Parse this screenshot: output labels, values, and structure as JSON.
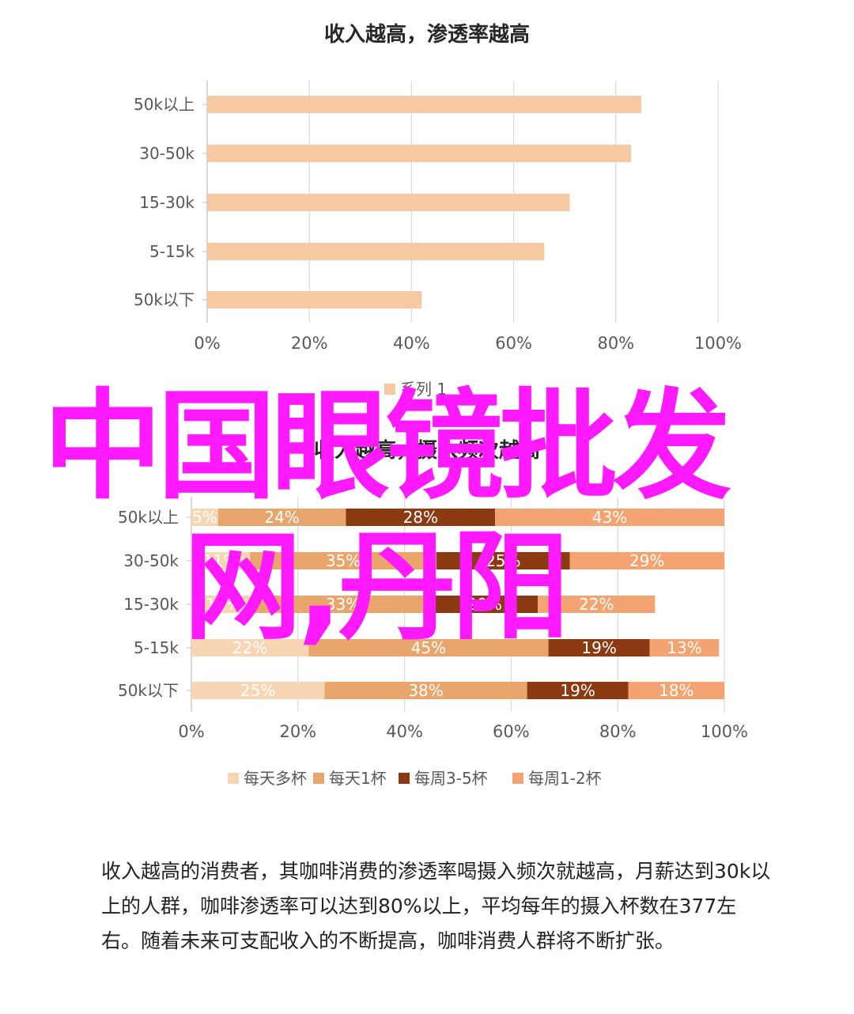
{
  "colors": {
    "single_bar": "#f6c9a3",
    "grid": "#d9d9d9",
    "axis": "#bfbfbf",
    "text": "#595959",
    "watermark": "#ff19ff"
  },
  "watermark": {
    "line1": "中国眼镜批发",
    "line2": "网,丹阳"
  },
  "chart_data": [
    {
      "type": "bar",
      "orientation": "horizontal",
      "title": "收入越高，渗透率越高",
      "categories": [
        "50k以上",
        "30-50k",
        "15-30k",
        "5-15k",
        "50k以下"
      ],
      "series": [
        {
          "name": "系列 1",
          "values": [
            85,
            83,
            71,
            66,
            42
          ]
        }
      ],
      "xlim": [
        0,
        100
      ],
      "x_ticks": [
        "0%",
        "20%",
        "40%",
        "60%",
        "80%",
        "100%"
      ],
      "grid": true,
      "legend": "bottom"
    },
    {
      "type": "bar",
      "orientation": "horizontal",
      "stacked": true,
      "title": "收入越高，摄入频次越高",
      "categories": [
        "50k以上",
        "30-50k",
        "15-30k",
        "5-15k",
        "50k以下"
      ],
      "series": [
        {
          "name": "每天多杯",
          "color": "#f8d6b4",
          "values": [
            5,
            11,
            12,
            22,
            25
          ]
        },
        {
          "name": "每天1杯",
          "color": "#e8a56c",
          "values": [
            24,
            35,
            33,
            45,
            38
          ]
        },
        {
          "name": "每周3-5杯",
          "color": "#8b3a12",
          "values": [
            28,
            25,
            20,
            19,
            19
          ]
        },
        {
          "name": "每周1-2杯",
          "color": "#f3a470",
          "values": [
            43,
            29,
            22,
            13,
            18
          ]
        }
      ],
      "xlim": [
        0,
        100
      ],
      "x_ticks": [
        "0%",
        "20%",
        "40%",
        "60%",
        "80%",
        "100%"
      ],
      "grid": true,
      "legend": "bottom"
    }
  ],
  "caption": "收入越高的消费者，其咖啡消费的渗透率喝摄入频次就越高，月薪达到30k以上的人群，咖啡渗透率可以达到80%以上，平均每年的摄入杯数在377左右。随着未来可支配收入的不断提高，咖啡消费人群将不断扩张。"
}
